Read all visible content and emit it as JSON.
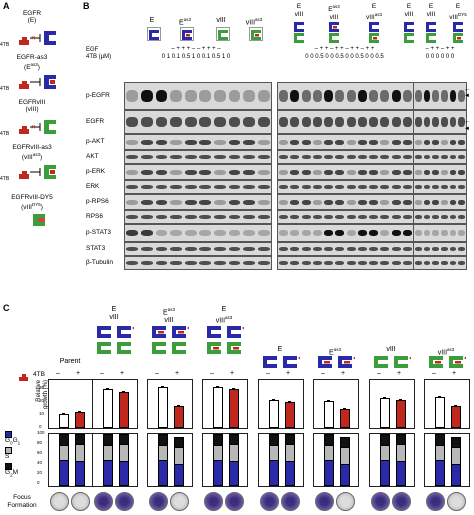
{
  "panel_a": {
    "letter": "A",
    "constructs": [
      {
        "name": "EGFR",
        "abbr": "(E)"
      },
      {
        "name": "EGFR-as3",
        "abbr": "(E",
        "sup": "as3",
        "close": ")"
      },
      {
        "name": "EGFRvIII",
        "abbr": "(vIII)"
      },
      {
        "name": "EGFRvIII-as3",
        "abbr": "(vIII",
        "sup": "as3",
        "close": ")"
      },
      {
        "name": "EGFRvIII-DY5",
        "abbr": "(vIII",
        "sup": "DY5",
        "close": ")"
      }
    ],
    "drug_label": "4TB"
  },
  "panel_b": {
    "letter": "B",
    "group1_cols": [
      "E",
      "E",
      "vIII",
      "vIII"
    ],
    "group1_sups": [
      "",
      "as3",
      "",
      "as3"
    ],
    "group2_cols": [
      "E\nvIII",
      "E\nvIII",
      "E\nvIII",
      "E\nvIII"
    ],
    "group3_cols": [
      "E\nvIII",
      "E\nvIII"
    ],
    "egf_label": "EGF",
    "egf_g1": "– + + + – – + + + –",
    "egf_g2": "– + + – + + – + + – + +",
    "egf_g3": "– + + – + +",
    "tb_label": "4TB (μM)",
    "tb_g1": "0 1 0.1 0.5 1 0 0.1 0.5 1 0",
    "tb_g2": "0 0 0.5 0 0 0.5 0 0 0.5 0 0 0.5",
    "tb_g3": "0 0 0 0 0 0",
    "blots": [
      "p-EGFR",
      "EGFR",
      "p-AKT",
      "AKT",
      "p-ERK",
      "ERK",
      "p-RPS6",
      "RPS6",
      "p-STAT3",
      "STAT3",
      "β-Tubulin"
    ]
  },
  "panel_c": {
    "letter": "C",
    "groups": [
      {
        "label": "Parent",
        "minus": 9,
        "plus": 11
      },
      {
        "label": "E vIII",
        "minus": 28,
        "plus": 26
      },
      {
        "label": "E",
        "sup": "as3",
        "label2": "vIII",
        "minus": 30,
        "plus": 15
      },
      {
        "label": "E vIII",
        "sup": "as3",
        "minus": 30,
        "plus": 28
      },
      {
        "label": "E",
        "minus": 20,
        "plus": 18
      },
      {
        "label": "E",
        "sup": "as3",
        "minus": 19,
        "plus": 13
      },
      {
        "label": "vIII",
        "minus": 21,
        "plus": 20
      },
      {
        "label": "vIII",
        "sup": "as3",
        "minus": 22,
        "plus": 15
      }
    ],
    "tb_label": "4TB",
    "minus": "–",
    "plus": "+",
    "ylabel": "Relative growth (%)",
    "yticks": [
      "0",
      "10",
      "20",
      "30"
    ],
    "cycle_legend": [
      "G",
      "S",
      "G"
    ],
    "cycle_sub": [
      "0",
      "",
      "2"
    ],
    "cycle_sup": [
      "1",
      "",
      ""
    ],
    "cycle_sub2": [
      "",
      "",
      "M"
    ],
    "cycle_ticks": [
      "100",
      "80",
      "60",
      "40",
      "20",
      "0"
    ],
    "focus_label": "Focus Formation",
    "colors": {
      "blue": "#2a2aa8",
      "gray": "#b8b8b8",
      "red": "#c0281e",
      "green": "#3b9e3b",
      "black": "#111111"
    }
  }
}
